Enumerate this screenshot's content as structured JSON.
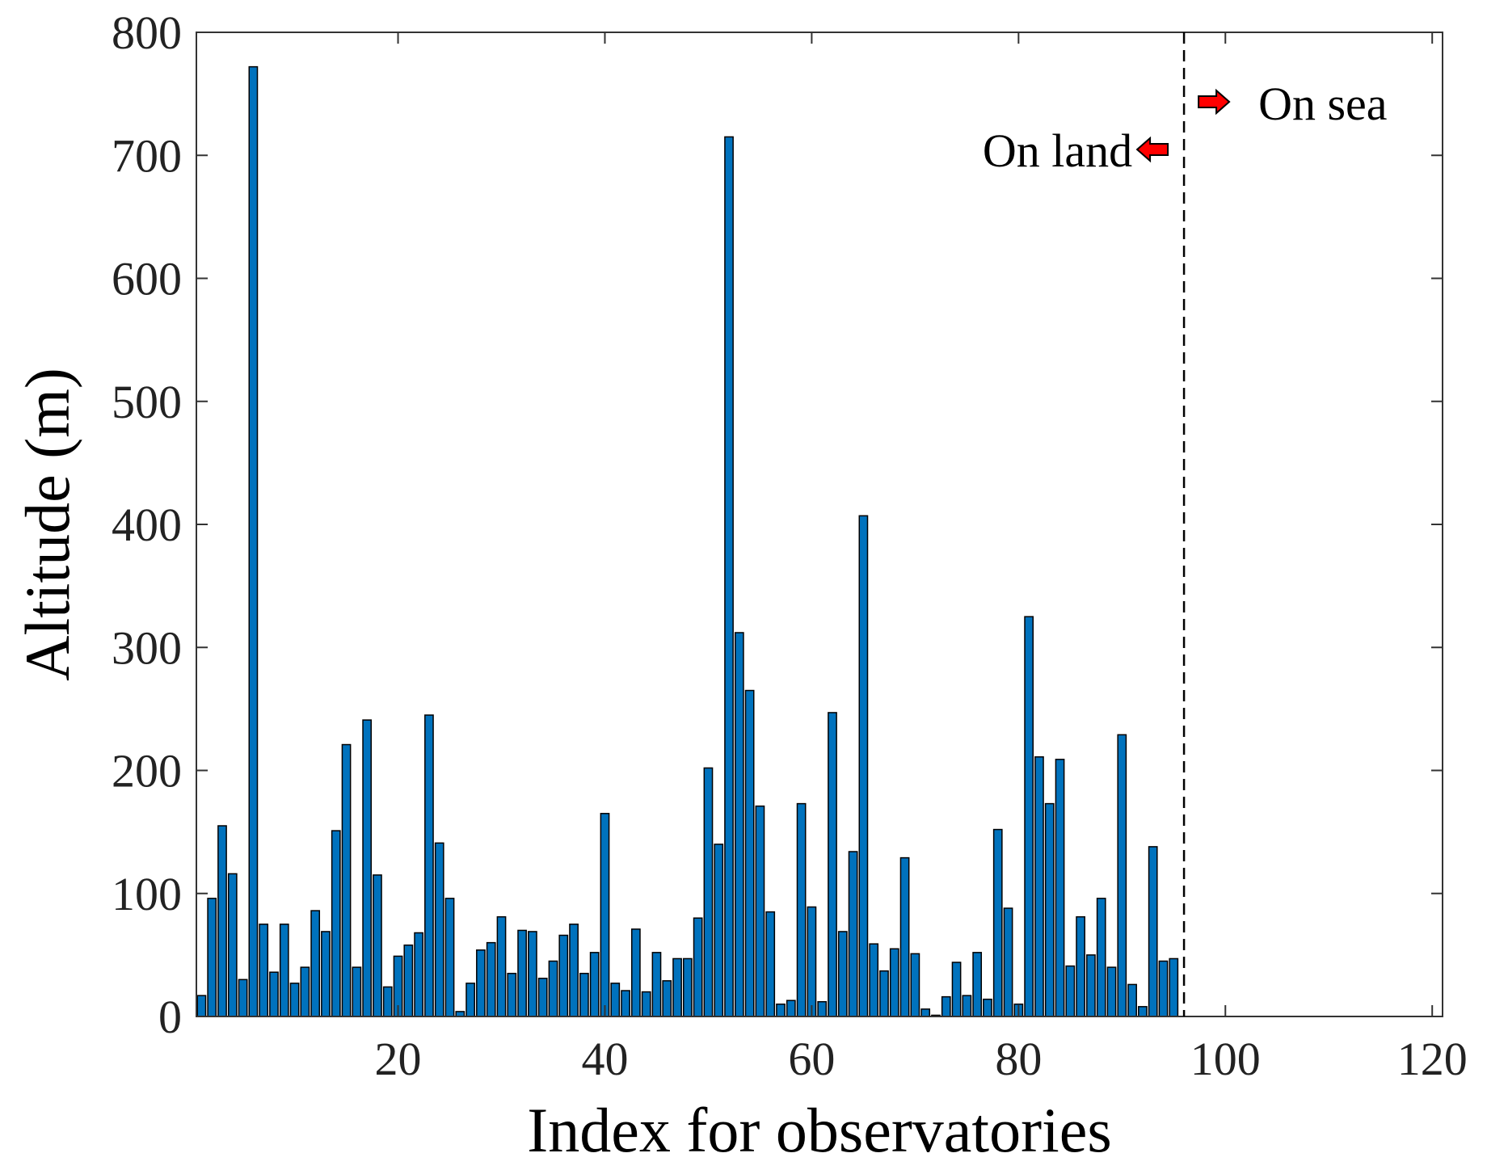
{
  "chart_data": {
    "type": "bar",
    "xlabel": "Index for observatories",
    "ylabel": "Altitude (m)",
    "xlim": [
      0.5,
      121
    ],
    "ylim": [
      0,
      800
    ],
    "xticks": [
      20,
      40,
      60,
      80,
      100,
      120
    ],
    "yticks": [
      0,
      100,
      200,
      300,
      400,
      500,
      600,
      700,
      800
    ],
    "grid": false,
    "bar_color": "#0072BD",
    "bar_edge_color": "#000000",
    "x": [
      1,
      2,
      3,
      4,
      5,
      6,
      7,
      8,
      9,
      10,
      11,
      12,
      13,
      14,
      15,
      16,
      17,
      18,
      19,
      20,
      21,
      22,
      23,
      24,
      25,
      26,
      27,
      28,
      29,
      30,
      31,
      32,
      33,
      34,
      35,
      36,
      37,
      38,
      39,
      40,
      41,
      42,
      43,
      44,
      45,
      46,
      47,
      48,
      49,
      50,
      51,
      52,
      53,
      54,
      55,
      56,
      57,
      58,
      59,
      60,
      61,
      62,
      63,
      64,
      65,
      66,
      67,
      68,
      69,
      70,
      71,
      72,
      73,
      74,
      75,
      76,
      77,
      78,
      79,
      80,
      81,
      82,
      83,
      84,
      85,
      86,
      87,
      88,
      89,
      90,
      91,
      92,
      93,
      94,
      95
    ],
    "values": [
      17,
      96,
      155,
      116,
      30,
      772,
      75,
      36,
      75,
      27,
      40,
      86,
      69,
      151,
      221,
      40,
      241,
      115,
      24,
      49,
      58,
      68,
      245,
      141,
      96,
      4,
      27,
      54,
      60,
      81,
      35,
      70,
      69,
      31,
      45,
      66,
      75,
      35,
      52,
      165,
      27,
      21,
      71,
      20,
      52,
      29,
      47,
      47,
      80,
      202,
      140,
      715,
      312,
      265,
      171,
      85,
      10,
      13,
      173,
      89,
      12,
      247,
      69,
      134,
      407,
      59,
      37,
      55,
      129,
      51,
      6,
      1,
      16,
      44,
      17,
      52,
      14,
      152,
      88,
      10,
      325,
      211,
      173,
      209,
      41,
      81,
      50,
      96,
      40,
      229,
      26,
      8,
      138,
      45,
      47
    ],
    "divider": {
      "x": 96,
      "color": "#000000",
      "style": "dashed"
    },
    "annotations": [
      {
        "text": "On land",
        "arrow": "left",
        "arrow_color": "#FF0000"
      },
      {
        "text": "On sea",
        "arrow": "right",
        "arrow_color": "#FF0000"
      }
    ]
  }
}
